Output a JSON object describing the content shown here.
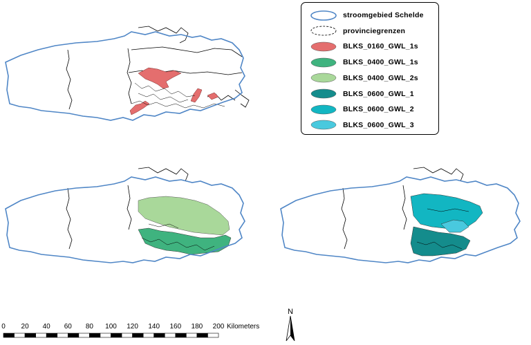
{
  "legend": {
    "items": [
      {
        "label": "stroomgebied Schelde",
        "kind": "outline",
        "color": "#4f86c6"
      },
      {
        "label": "provinciegrenzen",
        "kind": "dashed",
        "color": "#000000"
      },
      {
        "label": "BLKS_0160_GWL_1s",
        "kind": "fill",
        "color": "#e46e6e"
      },
      {
        "label": "BLKS_0400_GWL_1s",
        "kind": "fill",
        "color": "#3fb37f"
      },
      {
        "label": "BLKS_0400_GWL_2s",
        "kind": "fill",
        "color": "#a9d89a"
      },
      {
        "label": "BLKS_0600_GWL_1",
        "kind": "fill",
        "color": "#148c8c"
      },
      {
        "label": "BLKS_0600_GWL_2",
        "kind": "fill",
        "color": "#12b6c2"
      },
      {
        "label": "BLKS_0600_GWL_3",
        "kind": "fill",
        "color": "#49c9de"
      }
    ]
  },
  "scalebar": {
    "ticks": [
      "0",
      "20",
      "40",
      "60",
      "80",
      "100",
      "120",
      "140",
      "160",
      "180",
      "200"
    ],
    "unit": "Kilometers"
  },
  "north_arrow": {
    "label": "N",
    "icon": "north-arrow-icon"
  },
  "colors": {
    "basin_outline": "#4f86c6",
    "province_border": "#000000"
  }
}
